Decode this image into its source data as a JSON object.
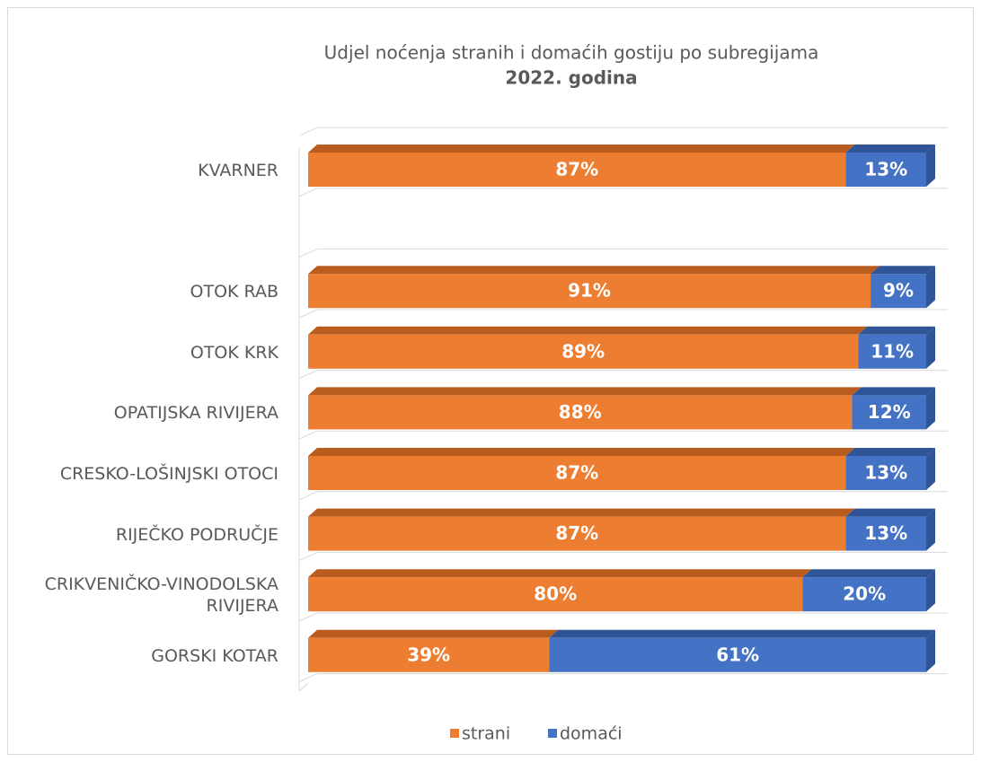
{
  "chart_data": {
    "type": "stacked-bar-horizontal",
    "title": "Udjel noćenja stranih i domaćih gostiju po subregijama",
    "subtitle": "2022. godina",
    "categories": [
      "KVARNER",
      null,
      "OTOK RAB",
      "OTOK KRK",
      "OPATIJSKA RIVIJERA",
      "CRESKO-LOŠINJSKI OTOCI",
      "RIJEČKO PODRUČJE",
      "CRIKVENIČKO-VINODOLSKA RIVIJERA",
      "GORSKI KOTAR"
    ],
    "series": [
      {
        "name": "strani",
        "color": "#ed7d31",
        "side_color": "#b95d1f",
        "values": [
          87,
          null,
          91,
          89,
          88,
          87,
          87,
          80,
          39
        ],
        "value_labels": [
          "87%",
          null,
          "91%",
          "89%",
          "88%",
          "87%",
          "87%",
          "80%",
          "39%"
        ]
      },
      {
        "name": "domaći",
        "color": "#4472c4",
        "side_color": "#2f5597",
        "values": [
          13,
          null,
          9,
          11,
          12,
          13,
          13,
          20,
          61
        ],
        "value_labels": [
          "13%",
          null,
          "9%",
          "11%",
          "12%",
          "13%",
          "13%",
          "20%",
          "61%"
        ]
      }
    ],
    "xlim": [
      0,
      100
    ],
    "legend": "bottom"
  }
}
